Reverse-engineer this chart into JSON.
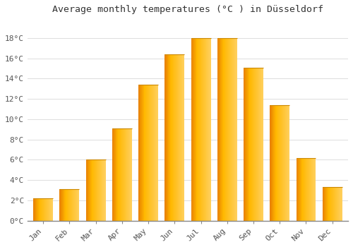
{
  "categories": [
    "Jan",
    "Feb",
    "Mar",
    "Apr",
    "May",
    "Jun",
    "Jul",
    "Aug",
    "Sep",
    "Oct",
    "Nov",
    "Dec"
  ],
  "values": [
    2.2,
    3.1,
    6.0,
    9.1,
    13.4,
    16.4,
    18.0,
    18.0,
    15.1,
    11.4,
    6.2,
    3.3
  ],
  "bar_color_left": "#E88000",
  "bar_color_mid": "#FFB800",
  "bar_color_right": "#FFD060",
  "title": "Average monthly temperatures (°C ) in Düsseldorf",
  "ylim": [
    0,
    19.8
  ],
  "yticks": [
    0,
    2,
    4,
    6,
    8,
    10,
    12,
    14,
    16,
    18
  ],
  "ytick_labels": [
    "0°C",
    "2°C",
    "4°C",
    "6°C",
    "8°C",
    "10°C",
    "12°C",
    "14°C",
    "16°C",
    "18°C"
  ],
  "background_color": "#FFFFFF",
  "grid_color": "#DDDDDD",
  "title_fontsize": 9.5,
  "tick_fontsize": 8,
  "font_family": "monospace",
  "bar_width": 0.75
}
